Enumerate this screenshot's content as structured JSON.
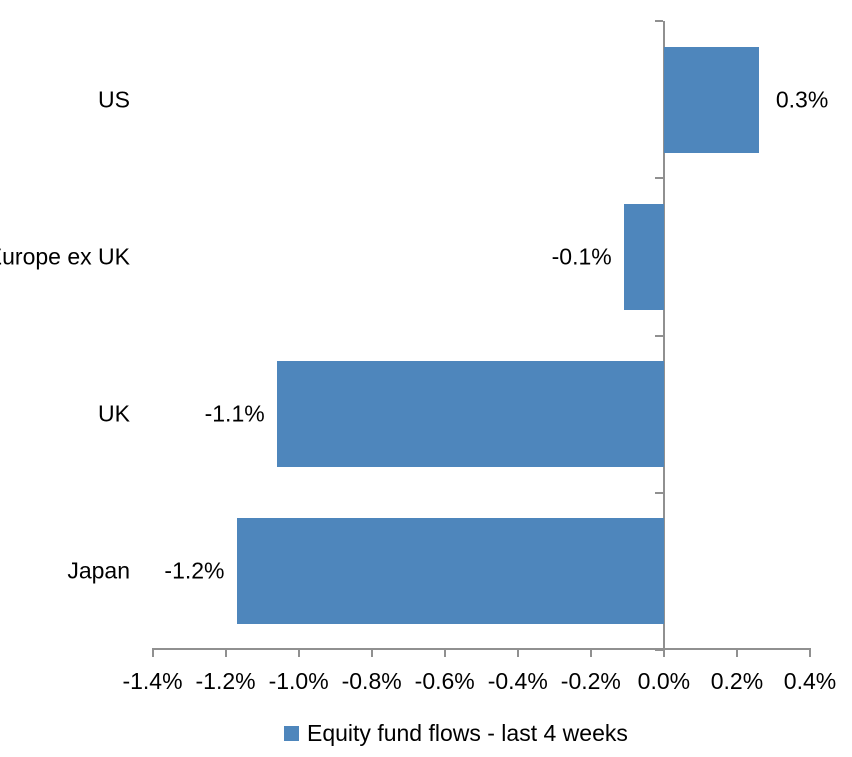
{
  "chart_data": {
    "type": "bar",
    "orientation": "horizontal",
    "title": "",
    "categories": [
      "US",
      "Europe ex UK",
      "UK",
      "Japan"
    ],
    "series": [
      {
        "name": "Equity fund flows - last 4 weeks",
        "values": [
          0.3,
          -0.1,
          -1.1,
          -1.2
        ],
        "plotted_values": [
          0.26,
          -0.11,
          -1.06,
          -1.17
        ],
        "data_labels": [
          "0.3%",
          "-0.1%",
          "-1.1%",
          "-1.2%"
        ],
        "color": "#4E86BC"
      }
    ],
    "xlabel": "",
    "ylabel": "",
    "x_axis": {
      "min": -1.4,
      "max": 0.4,
      "step": 0.2,
      "tick_values": [
        -1.4,
        -1.2,
        -1.0,
        -0.8,
        -0.6,
        -0.4,
        -0.2,
        0.0,
        0.2,
        0.4
      ],
      "tick_labels": [
        "-1.4%",
        "-1.2%",
        "-1.0%",
        "-0.8%",
        "-0.6%",
        "-0.4%",
        "-0.2%",
        "0.0%",
        "0.2%",
        "0.4%"
      ]
    },
    "grid": false,
    "legend": {
      "position": "bottom",
      "entries": [
        {
          "label": "Equity fund flows - last 4 weeks",
          "marker_color": "#4E86BC"
        }
      ]
    }
  },
  "colors": {
    "bar": "#4E86BC",
    "axis": "#909090",
    "text": "#000000",
    "background": "#FFFFFF"
  }
}
